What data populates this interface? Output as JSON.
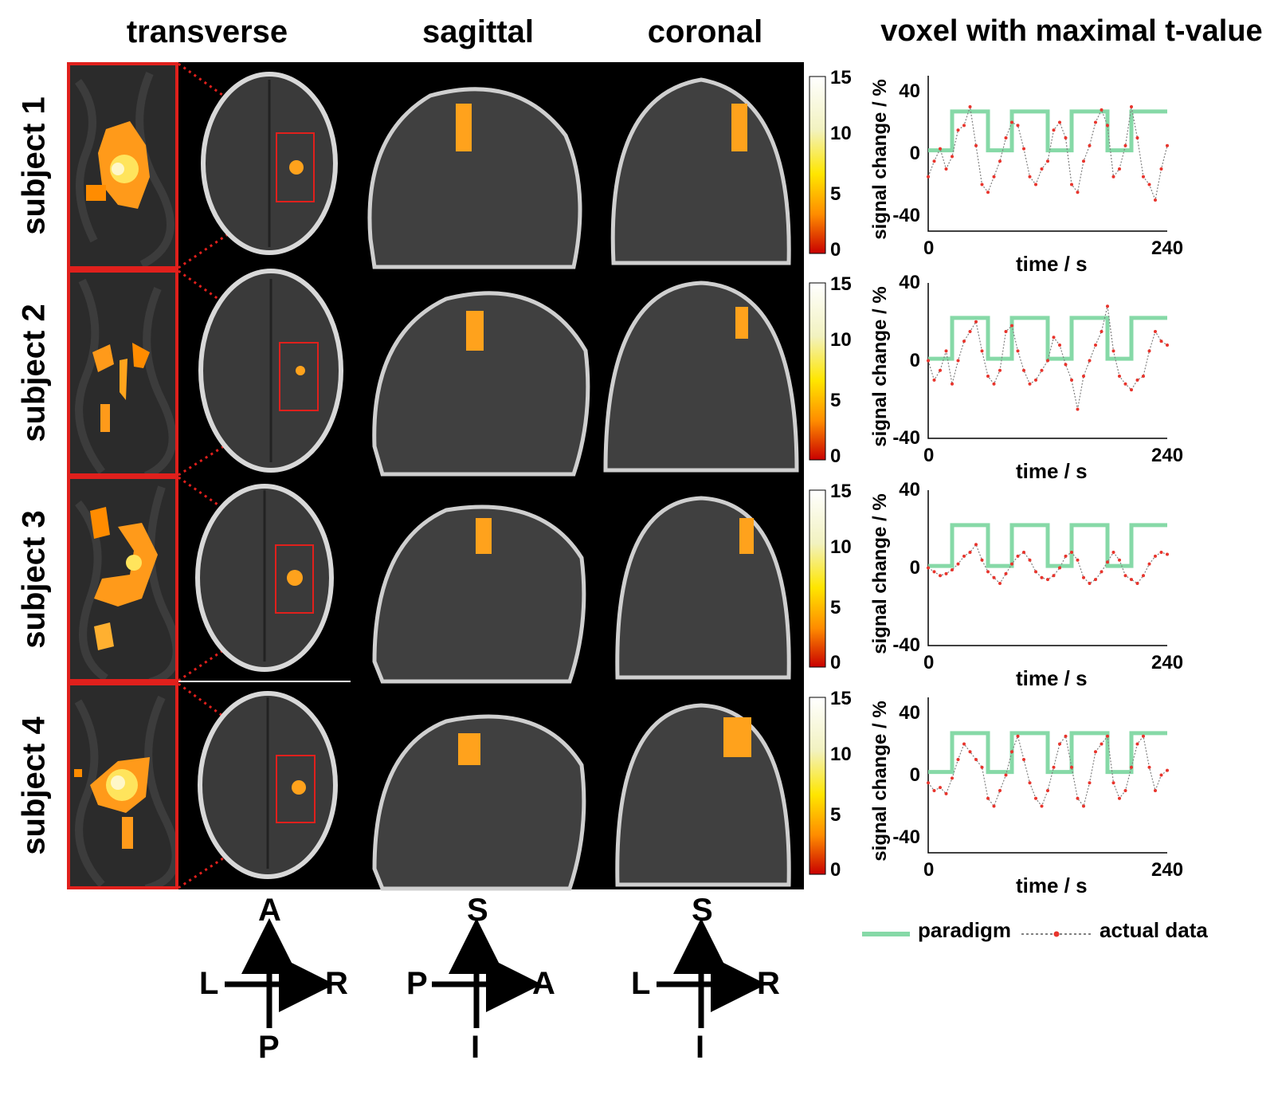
{
  "headers": {
    "transverse": "transverse",
    "sagittal": "sagittal",
    "coronal": "coronal",
    "timecourse": "voxel with maximal t-value"
  },
  "rows": [
    {
      "label": "subject 1"
    },
    {
      "label": "subject 2"
    },
    {
      "label": "subject 3"
    },
    {
      "label": "subject 4"
    }
  ],
  "colorbar": {
    "ticks": [
      "15",
      "10",
      "5",
      "0"
    ],
    "colors": [
      "#ffffff",
      "#f2f2c0",
      "#ffe600",
      "#ff8c00",
      "#c80000"
    ]
  },
  "chart_data": [
    {
      "type": "line",
      "xlabel": "time / s",
      "ylabel": "signal change / %",
      "xlim": [
        0,
        240
      ],
      "ylim": [
        -50,
        50
      ],
      "xticks": [
        "0",
        "240"
      ],
      "yticks": [
        "40",
        "0",
        "-40"
      ],
      "series": [
        {
          "name": "paradigm",
          "x": [
            0,
            24,
            24,
            60,
            60,
            84,
            84,
            120,
            120,
            144,
            144,
            180,
            180,
            204,
            204,
            240
          ],
          "y": [
            2,
            2,
            27,
            27,
            2,
            2,
            27,
            27,
            2,
            2,
            27,
            27,
            2,
            2,
            27,
            27
          ]
        },
        {
          "name": "actual data",
          "x": [
            0,
            6,
            12,
            18,
            24,
            30,
            36,
            42,
            48,
            54,
            60,
            66,
            72,
            78,
            84,
            90,
            96,
            102,
            108,
            114,
            120,
            126,
            132,
            138,
            144,
            150,
            156,
            162,
            168,
            174,
            180,
            186,
            192,
            198,
            204,
            210,
            216,
            222,
            228,
            234,
            240
          ],
          "y": [
            -15,
            -5,
            3,
            -10,
            -2,
            15,
            18,
            30,
            5,
            -20,
            -25,
            -15,
            -5,
            10,
            20,
            18,
            3,
            -15,
            -20,
            -10,
            -5,
            15,
            20,
            10,
            -20,
            -25,
            -5,
            5,
            20,
            28,
            18,
            -15,
            -10,
            5,
            30,
            10,
            -15,
            -20,
            -30,
            -10,
            5
          ]
        }
      ]
    },
    {
      "type": "line",
      "xlabel": "time / s",
      "ylabel": "signal change / %",
      "xlim": [
        0,
        240
      ],
      "ylim": [
        -40,
        40
      ],
      "xticks": [
        "0",
        "240"
      ],
      "yticks": [
        "40",
        "0",
        "-40"
      ],
      "series": [
        {
          "name": "paradigm",
          "x": [
            0,
            24,
            24,
            60,
            60,
            84,
            84,
            120,
            120,
            144,
            144,
            180,
            180,
            204,
            204,
            240
          ],
          "y": [
            1,
            1,
            22,
            22,
            1,
            1,
            22,
            22,
            1,
            1,
            22,
            22,
            1,
            1,
            22,
            22
          ]
        },
        {
          "name": "actual data",
          "x": [
            0,
            6,
            12,
            18,
            24,
            30,
            36,
            42,
            48,
            54,
            60,
            66,
            72,
            78,
            84,
            90,
            96,
            102,
            108,
            114,
            120,
            126,
            132,
            138,
            144,
            150,
            156,
            162,
            168,
            174,
            180,
            186,
            192,
            198,
            204,
            210,
            216,
            222,
            228,
            234,
            240
          ],
          "y": [
            0,
            -10,
            -5,
            5,
            -12,
            0,
            10,
            15,
            20,
            5,
            -8,
            -12,
            -5,
            15,
            18,
            5,
            -5,
            -12,
            -10,
            -5,
            0,
            12,
            8,
            -2,
            -10,
            -25,
            -8,
            0,
            8,
            15,
            28,
            5,
            -8,
            -12,
            -15,
            -10,
            -8,
            5,
            15,
            10,
            8
          ]
        }
      ]
    },
    {
      "type": "line",
      "xlabel": "time / s",
      "ylabel": "signal change / %",
      "xlim": [
        0,
        240
      ],
      "ylim": [
        -40,
        40
      ],
      "xticks": [
        "0",
        "240"
      ],
      "yticks": [
        "40",
        "0",
        "-40"
      ],
      "series": [
        {
          "name": "paradigm",
          "x": [
            0,
            24,
            24,
            60,
            60,
            84,
            84,
            120,
            120,
            144,
            144,
            180,
            180,
            204,
            204,
            240
          ],
          "y": [
            1,
            1,
            22,
            22,
            1,
            1,
            22,
            22,
            1,
            1,
            22,
            22,
            1,
            1,
            22,
            22
          ]
        },
        {
          "name": "actual data",
          "x": [
            0,
            6,
            12,
            18,
            24,
            30,
            36,
            42,
            48,
            54,
            60,
            66,
            72,
            78,
            84,
            90,
            96,
            102,
            108,
            114,
            120,
            126,
            132,
            138,
            144,
            150,
            156,
            162,
            168,
            174,
            180,
            186,
            192,
            198,
            204,
            210,
            216,
            222,
            228,
            234,
            240
          ],
          "y": [
            0,
            -2,
            -4,
            -3,
            -1,
            2,
            6,
            8,
            12,
            4,
            -2,
            -5,
            -8,
            -3,
            2,
            6,
            8,
            4,
            -2,
            -5,
            -6,
            -4,
            0,
            6,
            8,
            4,
            -5,
            -8,
            -6,
            -2,
            3,
            8,
            4,
            -4,
            -6,
            -8,
            -4,
            2,
            6,
            8,
            7
          ]
        }
      ]
    },
    {
      "type": "line",
      "xlabel": "time / s",
      "ylabel": "signal change / %",
      "xlim": [
        0,
        240
      ],
      "ylim": [
        -50,
        50
      ],
      "xticks": [
        "0",
        "240"
      ],
      "yticks": [
        "40",
        "0",
        "-40"
      ],
      "series": [
        {
          "name": "paradigm",
          "x": [
            0,
            24,
            24,
            60,
            60,
            84,
            84,
            120,
            120,
            144,
            144,
            180,
            180,
            204,
            204,
            240
          ],
          "y": [
            2,
            2,
            27,
            27,
            2,
            2,
            27,
            27,
            2,
            2,
            27,
            27,
            2,
            2,
            27,
            27
          ]
        },
        {
          "name": "actual data",
          "x": [
            0,
            6,
            12,
            18,
            24,
            30,
            36,
            42,
            48,
            54,
            60,
            66,
            72,
            78,
            84,
            90,
            96,
            102,
            108,
            114,
            120,
            126,
            132,
            138,
            144,
            150,
            156,
            162,
            168,
            174,
            180,
            186,
            192,
            198,
            204,
            210,
            216,
            222,
            228,
            234,
            240
          ],
          "y": [
            -5,
            -10,
            -8,
            -12,
            -2,
            10,
            20,
            15,
            10,
            5,
            -15,
            -20,
            -10,
            0,
            15,
            25,
            10,
            -5,
            -15,
            -20,
            -10,
            5,
            20,
            25,
            5,
            -15,
            -20,
            -5,
            15,
            20,
            25,
            -5,
            -15,
            -10,
            5,
            20,
            25,
            5,
            -10,
            0,
            3
          ]
        }
      ]
    }
  ],
  "legend": {
    "paradigm": "paradigm",
    "actual_data": "actual data",
    "paradigm_color": "#86d9a7",
    "data_point_color": "#e8342c",
    "data_line_color": "#808080"
  },
  "orientation": {
    "transverse": {
      "up": "A",
      "down": "P",
      "left": "L",
      "right": "R"
    },
    "sagittal": {
      "up": "S",
      "down": "I",
      "left": "P",
      "right": "A"
    },
    "coronal": {
      "up": "S",
      "down": "I",
      "left": "L",
      "right": "R"
    }
  },
  "highlight_color": "#e0201c"
}
